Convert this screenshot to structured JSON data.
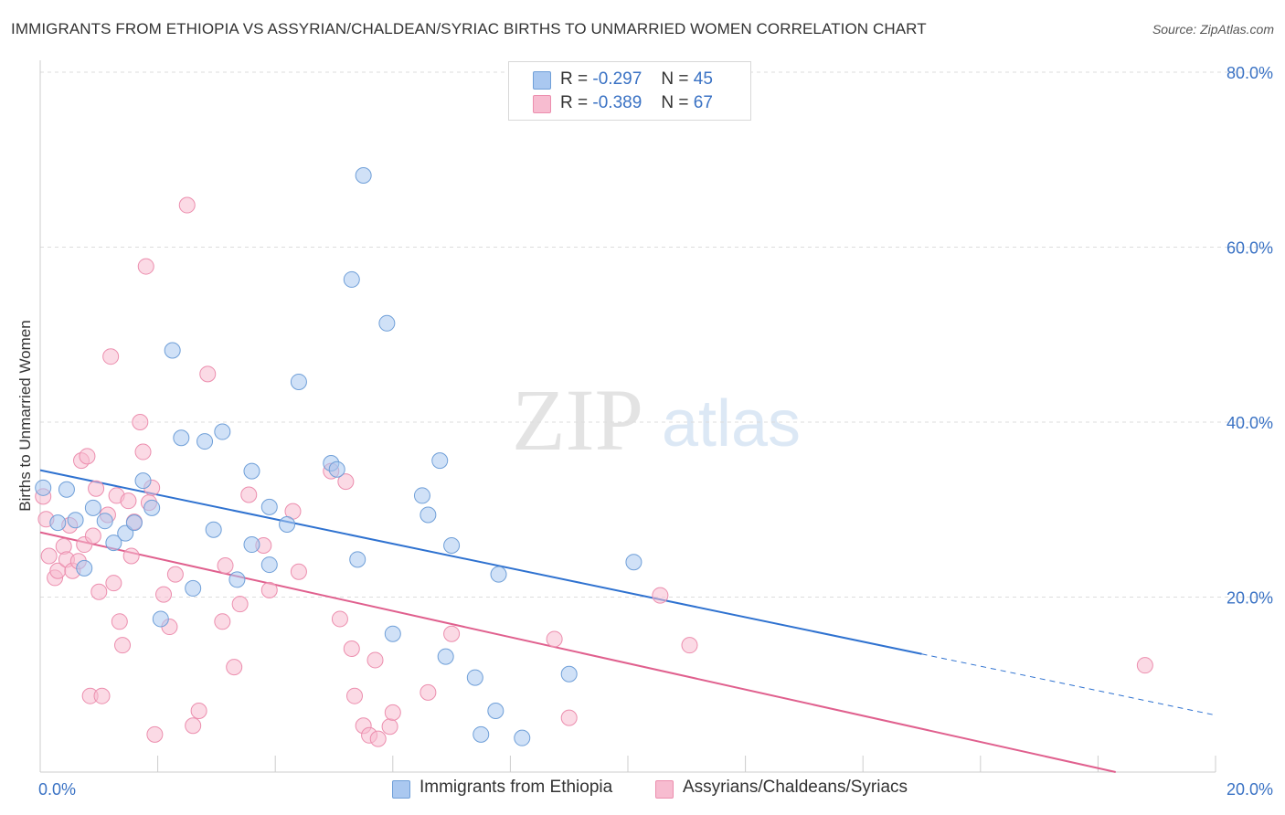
{
  "header": {
    "title": "IMMIGRANTS FROM ETHIOPIA VS ASSYRIAN/CHALDEAN/SYRIAC BIRTHS TO UNMARRIED WOMEN CORRELATION CHART",
    "source": "Source: ZipAtlas.com"
  },
  "watermark": {
    "zip": "ZIP",
    "atlas": "atlas"
  },
  "stats_legend": {
    "rows": [
      {
        "r_label": "R =",
        "r_value": "-0.297",
        "n_label": "N =",
        "n_value": "45",
        "color": "#aac8f0"
      },
      {
        "r_label": "R =",
        "r_value": "-0.389",
        "n_label": "N =",
        "n_value": "67",
        "color": "#f7bcd0"
      }
    ]
  },
  "bottom_legend": {
    "items": [
      {
        "label": "Immigrants from Ethiopia",
        "color": "#aac8f0"
      },
      {
        "label": "Assyrians/Chaldeans/Syriacs",
        "color": "#f7bcd0"
      }
    ]
  },
  "chart_data": {
    "type": "scatter",
    "title": "IMMIGRANTS FROM ETHIOPIA VS ASSYRIAN/CHALDEAN/SYRIAC BIRTHS TO UNMARRIED WOMEN CORRELATION CHART",
    "xlabel": "",
    "ylabel": "Births to Unmarried Women",
    "xlim": [
      0,
      20
    ],
    "ylim": [
      0,
      80
    ],
    "x_tick_labels": [
      "0.0%",
      "20.0%"
    ],
    "y_tick_labels": [
      "20.0%",
      "40.0%",
      "60.0%",
      "80.0%"
    ],
    "y_ticks": [
      20,
      40,
      60,
      80
    ],
    "grid": true,
    "legend_position": "top-center",
    "colors": {
      "ethiopia_fill": "#aac8f0",
      "ethiopia_stroke": "#6f9fd8",
      "ethiopia_line": "#2f72d0",
      "assyrian_fill": "#f7bcd0",
      "assyrian_stroke": "#ec8eae",
      "assyrian_line": "#e0608e",
      "tick_label": "#3a72c4",
      "grid": "#dddddd"
    },
    "series": [
      {
        "name": "Immigrants from Ethiopia",
        "r": -0.297,
        "n": 45,
        "trend": {
          "x0": 0.0,
          "y0": 34.5,
          "x1": 15.0,
          "y1": 13.5,
          "dashed_to_x": 20.0,
          "dashed_to_y": 6.5
        },
        "points": [
          [
            0.05,
            32.5
          ],
          [
            0.3,
            28.5
          ],
          [
            0.45,
            32.3
          ],
          [
            0.6,
            28.8
          ],
          [
            0.75,
            23.3
          ],
          [
            0.9,
            30.2
          ],
          [
            1.1,
            28.7
          ],
          [
            1.25,
            26.2
          ],
          [
            1.45,
            27.3
          ],
          [
            1.6,
            28.5
          ],
          [
            1.75,
            33.3
          ],
          [
            1.9,
            30.2
          ],
          [
            2.05,
            17.5
          ],
          [
            2.25,
            48.2
          ],
          [
            2.4,
            38.2
          ],
          [
            2.6,
            21.0
          ],
          [
            2.8,
            37.8
          ],
          [
            2.95,
            27.7
          ],
          [
            3.1,
            38.9
          ],
          [
            3.35,
            22.0
          ],
          [
            3.6,
            26.0
          ],
          [
            3.6,
            34.4
          ],
          [
            3.9,
            30.3
          ],
          [
            3.9,
            23.7
          ],
          [
            4.2,
            28.3
          ],
          [
            4.4,
            44.6
          ],
          [
            4.95,
            35.3
          ],
          [
            5.05,
            34.6
          ],
          [
            5.3,
            56.3
          ],
          [
            5.4,
            24.3
          ],
          [
            5.5,
            68.2
          ],
          [
            5.9,
            51.3
          ],
          [
            6.0,
            15.8
          ],
          [
            6.5,
            31.6
          ],
          [
            6.6,
            29.4
          ],
          [
            6.8,
            35.6
          ],
          [
            6.9,
            13.2
          ],
          [
            7.0,
            25.9
          ],
          [
            7.4,
            10.8
          ],
          [
            7.5,
            4.3
          ],
          [
            7.75,
            7.0
          ],
          [
            7.8,
            22.6
          ],
          [
            8.2,
            3.9
          ],
          [
            9.0,
            11.2
          ],
          [
            10.1,
            24.0
          ]
        ]
      },
      {
        "name": "Assyrians/Chaldeans/Syriacs",
        "r": -0.389,
        "n": 67,
        "trend": {
          "x0": 0.0,
          "y0": 27.4,
          "x1": 18.3,
          "y1": 0.0
        },
        "points": [
          [
            0.05,
            31.5
          ],
          [
            0.1,
            28.9
          ],
          [
            0.15,
            24.7
          ],
          [
            0.25,
            22.2
          ],
          [
            0.3,
            23.0
          ],
          [
            0.4,
            25.8
          ],
          [
            0.45,
            24.3
          ],
          [
            0.5,
            28.2
          ],
          [
            0.55,
            23.0
          ],
          [
            0.65,
            24.1
          ],
          [
            0.7,
            35.6
          ],
          [
            0.75,
            26.0
          ],
          [
            0.8,
            36.1
          ],
          [
            0.85,
            8.7
          ],
          [
            0.9,
            27.0
          ],
          [
            0.95,
            32.4
          ],
          [
            1.0,
            20.6
          ],
          [
            1.05,
            8.7
          ],
          [
            1.15,
            29.4
          ],
          [
            1.2,
            47.5
          ],
          [
            1.25,
            21.6
          ],
          [
            1.3,
            31.6
          ],
          [
            1.35,
            17.2
          ],
          [
            1.4,
            14.5
          ],
          [
            1.5,
            31.0
          ],
          [
            1.55,
            24.7
          ],
          [
            1.6,
            28.6
          ],
          [
            1.7,
            40.0
          ],
          [
            1.75,
            36.6
          ],
          [
            1.8,
            57.8
          ],
          [
            1.85,
            30.8
          ],
          [
            1.9,
            32.5
          ],
          [
            1.95,
            4.3
          ],
          [
            2.1,
            20.3
          ],
          [
            2.2,
            16.6
          ],
          [
            2.3,
            22.6
          ],
          [
            2.5,
            64.8
          ],
          [
            2.6,
            5.3
          ],
          [
            2.7,
            7.0
          ],
          [
            2.85,
            45.5
          ],
          [
            3.1,
            17.2
          ],
          [
            3.15,
            23.6
          ],
          [
            3.3,
            12.0
          ],
          [
            3.4,
            19.2
          ],
          [
            3.55,
            31.7
          ],
          [
            3.8,
            25.9
          ],
          [
            3.9,
            20.8
          ],
          [
            4.3,
            29.8
          ],
          [
            4.4,
            22.9
          ],
          [
            4.95,
            34.4
          ],
          [
            5.1,
            17.5
          ],
          [
            5.2,
            33.2
          ],
          [
            5.3,
            14.1
          ],
          [
            5.35,
            8.7
          ],
          [
            5.5,
            5.3
          ],
          [
            5.6,
            4.2
          ],
          [
            5.7,
            12.8
          ],
          [
            5.75,
            3.8
          ],
          [
            5.95,
            5.2
          ],
          [
            6.0,
            6.8
          ],
          [
            6.6,
            9.1
          ],
          [
            7.0,
            15.8
          ],
          [
            8.75,
            15.2
          ],
          [
            9.0,
            6.2
          ],
          [
            10.55,
            20.2
          ],
          [
            11.05,
            14.5
          ],
          [
            18.8,
            12.2
          ]
        ]
      }
    ]
  }
}
